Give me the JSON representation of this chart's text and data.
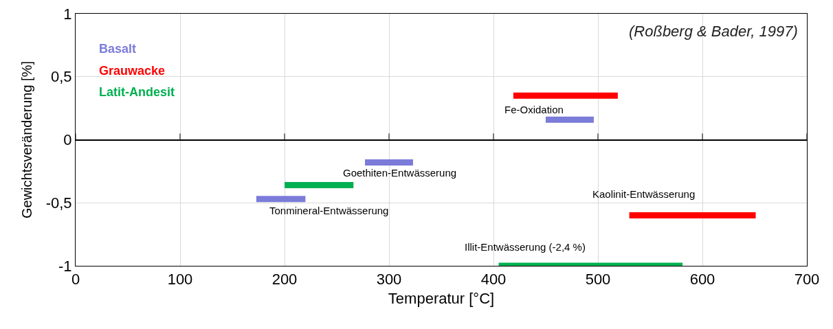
{
  "chart_data": {
    "type": "line",
    "xlabel": "Temperatur [°C]",
    "ylabel": "Gewichtsveränderung [%]",
    "xlim": [
      0,
      700
    ],
    "xticks": [
      0,
      100,
      200,
      300,
      400,
      500,
      600,
      700
    ],
    "ylim": [
      -1,
      1
    ],
    "yticks": [
      {
        "value": 1,
        "label": "1"
      },
      {
        "value": 0.5,
        "label": "0,5"
      },
      {
        "value": 0,
        "label": "0"
      },
      {
        "value": -0.5,
        "label": "-0,5"
      },
      {
        "value": -1,
        "label": "-1"
      }
    ],
    "grid": true,
    "legend": "top left",
    "series": [
      {
        "name": "Basalt",
        "color": "#7b7bd9",
        "x": [
          173,
          220,
          null,
          277,
          323,
          null,
          450,
          496
        ],
        "values": [
          -0.47,
          -0.47,
          null,
          -0.18,
          -0.18,
          null,
          0.16,
          0.16
        ]
      },
      {
        "name": "Grauwacke",
        "color": "#ff0000",
        "x": [
          419,
          519,
          null,
          530,
          651
        ],
        "values": [
          0.35,
          0.35,
          null,
          -0.6,
          -0.6
        ]
      },
      {
        "name": "Latit-Andesit",
        "color": "#00b050",
        "x": [
          200,
          266,
          null,
          405,
          581
        ],
        "values": [
          -0.36,
          -0.36,
          null,
          -1,
          -1
        ]
      }
    ],
    "annotations": [
      "(Roßberg & Bader, 1997)",
      "Fe-Oxidation",
      "Goethiten-Entwässerung",
      "Tonmineral-Entwässerung",
      "Kaolinit-Entwässerung",
      "Illit-Entwässerung (-2,4 %)"
    ]
  }
}
